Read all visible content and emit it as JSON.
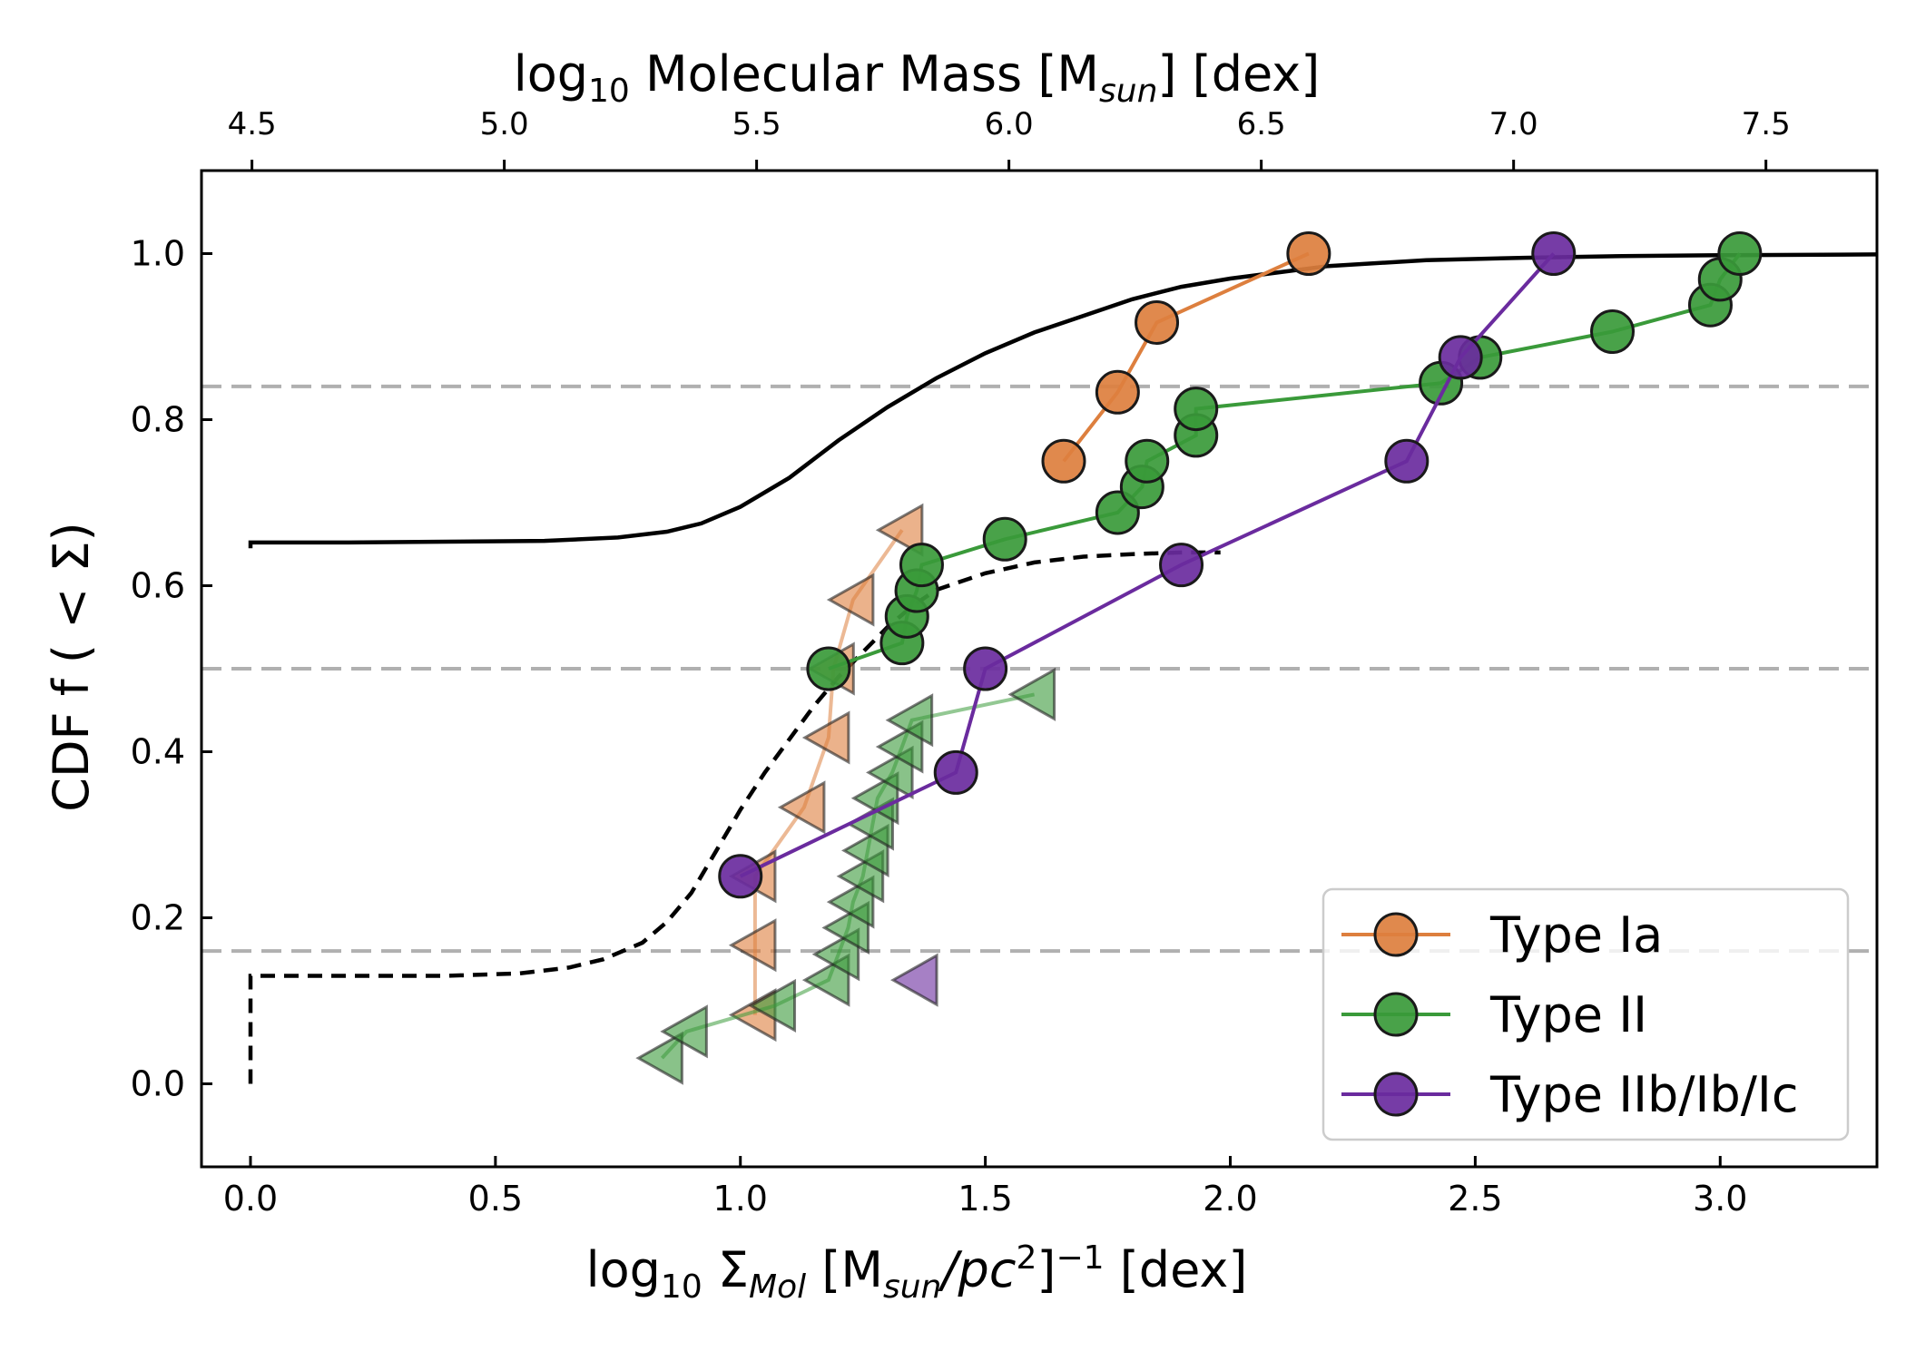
{
  "chart_data": {
    "type": "line",
    "xlabel": "log₁₀ Σ_Mol [M_sun/pc²]⁻¹ [dex]",
    "xlabel_parts": {
      "pre": "log",
      "sub1": "10",
      "sigma": " Σ",
      "sub2": "Mol",
      "mid1": " [M",
      "sub3": "sun",
      "mid2": "/pc",
      "sup1": "2",
      "mid3": "]",
      "sup2": "−1",
      "post": " [dex]"
    },
    "ylabel": "CDF f ( < Σ)",
    "top_xlabel": "log₁₀ Molecular Mass [M_sun] [dex]",
    "top_xlabel_parts": {
      "pre": "log",
      "sub1": "10",
      "mid": " Molecular Mass [M",
      "sub2": "sun",
      "post": "] [dex]"
    },
    "xlim": [
      -0.1,
      3.32
    ],
    "ylim": [
      -0.1,
      1.1
    ],
    "top_xlim": [
      4.4,
      7.72
    ],
    "x_ticks": [
      0.0,
      0.5,
      1.0,
      1.5,
      2.0,
      2.5,
      3.0
    ],
    "x_tick_labels": [
      "0.0",
      "0.5",
      "1.0",
      "1.5",
      "2.0",
      "2.5",
      "3.0"
    ],
    "y_ticks": [
      0.0,
      0.2,
      0.4,
      0.6,
      0.8,
      1.0
    ],
    "y_tick_labels": [
      "0.0",
      "0.2",
      "0.4",
      "0.6",
      "0.8",
      "1.0"
    ],
    "top_ticks": [
      4.5,
      5.0,
      5.5,
      6.0,
      6.5,
      7.0,
      7.5
    ],
    "top_tick_labels": [
      "4.5",
      "5.0",
      "5.5",
      "6.0",
      "6.5",
      "7.0",
      "7.5"
    ],
    "reference_lines": [
      0.16,
      0.5,
      0.84
    ],
    "legend_position": "lower-right",
    "grid": false,
    "model_curves": [
      {
        "style": "solid",
        "points": [
          [
            0,
            0.645
          ],
          [
            0,
            0.652
          ],
          [
            0.2,
            0.652
          ],
          [
            0.4,
            0.653
          ],
          [
            0.6,
            0.654
          ],
          [
            0.75,
            0.658
          ],
          [
            0.85,
            0.665
          ],
          [
            0.92,
            0.675
          ],
          [
            1.0,
            0.695
          ],
          [
            1.1,
            0.73
          ],
          [
            1.2,
            0.775
          ],
          [
            1.3,
            0.815
          ],
          [
            1.4,
            0.85
          ],
          [
            1.5,
            0.88
          ],
          [
            1.6,
            0.905
          ],
          [
            1.7,
            0.925
          ],
          [
            1.8,
            0.945
          ],
          [
            1.9,
            0.96
          ],
          [
            2.0,
            0.97
          ],
          [
            2.2,
            0.985
          ],
          [
            2.4,
            0.992
          ],
          [
            2.6,
            0.995
          ],
          [
            2.8,
            0.997
          ],
          [
            3.0,
            0.998
          ],
          [
            3.32,
            0.999
          ]
        ]
      },
      {
        "style": "dashed",
        "points": [
          [
            0,
            0.0
          ],
          [
            0,
            0.13
          ],
          [
            0.2,
            0.13
          ],
          [
            0.4,
            0.13
          ],
          [
            0.55,
            0.133
          ],
          [
            0.65,
            0.14
          ],
          [
            0.72,
            0.15
          ],
          [
            0.8,
            0.17
          ],
          [
            0.85,
            0.195
          ],
          [
            0.9,
            0.23
          ],
          [
            0.95,
            0.28
          ],
          [
            1.0,
            0.33
          ],
          [
            1.05,
            0.375
          ],
          [
            1.1,
            0.415
          ],
          [
            1.15,
            0.455
          ],
          [
            1.2,
            0.49
          ],
          [
            1.25,
            0.52
          ],
          [
            1.3,
            0.55
          ],
          [
            1.35,
            0.575
          ],
          [
            1.4,
            0.595
          ],
          [
            1.5,
            0.615
          ],
          [
            1.6,
            0.628
          ],
          [
            1.7,
            0.635
          ],
          [
            1.8,
            0.638
          ],
          [
            1.9,
            0.64
          ],
          [
            1.98,
            0.64
          ]
        ]
      }
    ],
    "series": [
      {
        "name": "Type Ia",
        "color": "#dd7f3e",
        "marker": "circle",
        "detections": [
          [
            1.66,
            0.75
          ],
          [
            1.77,
            0.833
          ],
          [
            1.85,
            0.917
          ],
          [
            2.16,
            1.0
          ]
        ],
        "upper_limits": [
          [
            1.03,
            0.083
          ],
          [
            1.03,
            0.167
          ],
          [
            1.03,
            0.25
          ],
          [
            1.13,
            0.333
          ],
          [
            1.18,
            0.417
          ],
          [
            1.19,
            0.5
          ],
          [
            1.23,
            0.583
          ],
          [
            1.33,
            0.667
          ]
        ]
      },
      {
        "name": "Type II",
        "color": "#3a9a3a",
        "marker": "circle",
        "detections": [
          [
            1.18,
            0.5
          ],
          [
            1.33,
            0.531
          ],
          [
            1.34,
            0.563
          ],
          [
            1.36,
            0.594
          ],
          [
            1.37,
            0.625
          ],
          [
            1.54,
            0.656
          ],
          [
            1.77,
            0.688
          ],
          [
            1.82,
            0.719
          ],
          [
            1.83,
            0.75
          ],
          [
            1.93,
            0.781
          ],
          [
            1.93,
            0.813
          ],
          [
            2.43,
            0.844
          ],
          [
            2.51,
            0.875
          ],
          [
            2.78,
            0.906
          ],
          [
            2.98,
            0.938
          ],
          [
            3.0,
            0.969
          ],
          [
            3.04,
            1.0
          ]
        ],
        "upper_limits": [
          [
            0.84,
            0.031
          ],
          [
            0.89,
            0.063
          ],
          [
            1.07,
            0.094
          ],
          [
            1.18,
            0.125
          ],
          [
            1.2,
            0.156
          ],
          [
            1.22,
            0.188
          ],
          [
            1.23,
            0.219
          ],
          [
            1.25,
            0.25
          ],
          [
            1.26,
            0.281
          ],
          [
            1.27,
            0.313
          ],
          [
            1.28,
            0.344
          ],
          [
            1.31,
            0.375
          ],
          [
            1.33,
            0.406
          ],
          [
            1.35,
            0.438
          ],
          [
            1.6,
            0.469
          ]
        ]
      },
      {
        "name": "Type IIb/Ib/Ic",
        "color": "#6a2b9e",
        "marker": "circle",
        "detections": [
          [
            1.0,
            0.25
          ],
          [
            1.44,
            0.375
          ],
          [
            1.5,
            0.5
          ],
          [
            1.9,
            0.625
          ],
          [
            2.36,
            0.75
          ],
          [
            2.47,
            0.875
          ],
          [
            2.66,
            1.0
          ]
        ],
        "upper_limits": [
          [
            1.36,
            0.125
          ]
        ]
      }
    ]
  }
}
